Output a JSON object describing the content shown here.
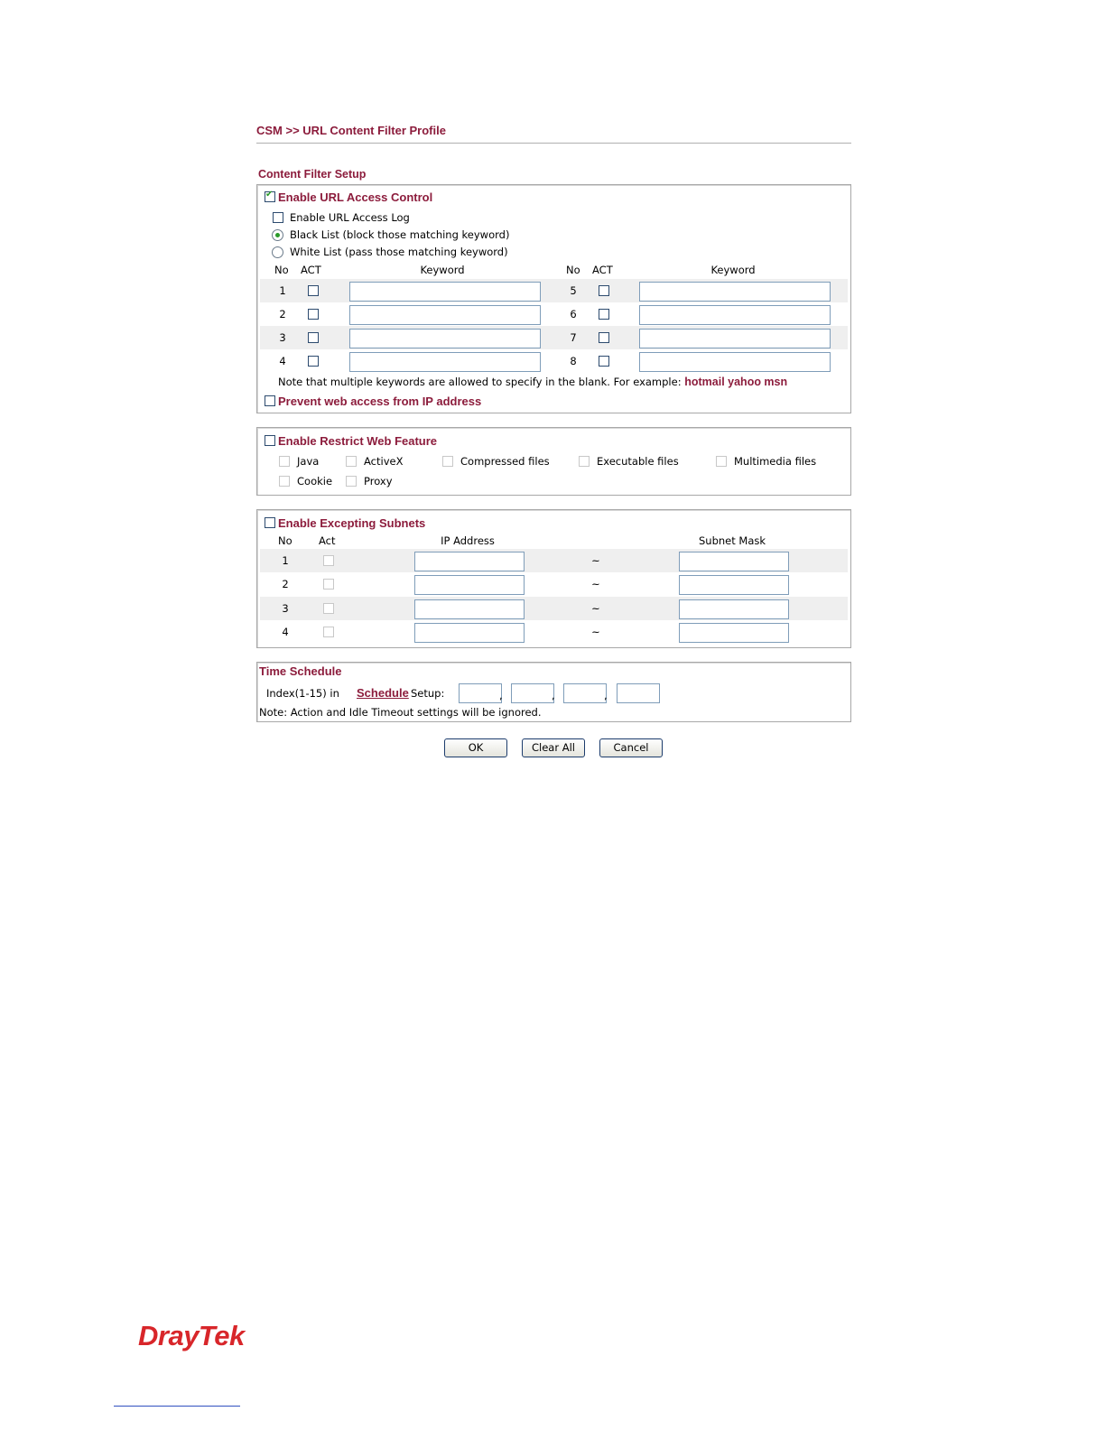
{
  "breadcrumb": "CSM >> URL Content Filter Profile",
  "section_title": "Content Filter Setup",
  "url_access": {
    "enable_label": "Enable URL Access Control",
    "enabled": true,
    "log_label": "Enable URL Access Log",
    "log_enabled": false,
    "black_list_label": "Black List (block those matching keyword)",
    "white_list_label": "White List (pass those matching keyword)",
    "selected_list": "Black List",
    "headers": {
      "no": "No",
      "act": "ACT",
      "keyword": "Keyword"
    },
    "keywords": [
      {
        "no": "1",
        "act": false,
        "value": ""
      },
      {
        "no": "2",
        "act": false,
        "value": ""
      },
      {
        "no": "3",
        "act": false,
        "value": ""
      },
      {
        "no": "4",
        "act": false,
        "value": ""
      },
      {
        "no": "5",
        "act": false,
        "value": ""
      },
      {
        "no": "6",
        "act": false,
        "value": ""
      },
      {
        "no": "7",
        "act": false,
        "value": ""
      },
      {
        "no": "8",
        "act": false,
        "value": ""
      }
    ],
    "note": "Note that multiple keywords are allowed to specify in the blank. For example:",
    "note_example": "hotmail yahoo msn",
    "prevent_ip_label": "Prevent web access from IP address",
    "prevent_ip": false
  },
  "restrict_web": {
    "enable_label": "Enable Restrict Web Feature",
    "enabled": false,
    "features": [
      "Java",
      "ActiveX",
      "Compressed files",
      "Executable files",
      "Multimedia files",
      "Cookie",
      "Proxy"
    ]
  },
  "excepting_subnets": {
    "enable_label": "Enable Excepting Subnets",
    "enabled": false,
    "headers": {
      "no": "No",
      "act": "Act",
      "ip": "IP Address",
      "mask": "Subnet Mask"
    },
    "separator": "~",
    "rows": [
      {
        "no": "1",
        "ip": "",
        "mask": ""
      },
      {
        "no": "2",
        "ip": "",
        "mask": ""
      },
      {
        "no": "3",
        "ip": "",
        "mask": ""
      },
      {
        "no": "4",
        "ip": "",
        "mask": ""
      }
    ]
  },
  "time_schedule": {
    "title": "Time Schedule",
    "index_prefix": "Index(1-15) in",
    "schedule_link": "Schedule",
    "setup_suffix": "Setup:",
    "indices": [
      "",
      "",
      "",
      ""
    ],
    "note": "Note: Action and Idle Timeout settings will be ignored."
  },
  "buttons": {
    "ok": "OK",
    "clear_all": "Clear All",
    "cancel": "Cancel"
  },
  "footer": {
    "logo": "DrayTek"
  },
  "colors": {
    "accent": "#8c1c3c",
    "logo": "#d8262a"
  }
}
